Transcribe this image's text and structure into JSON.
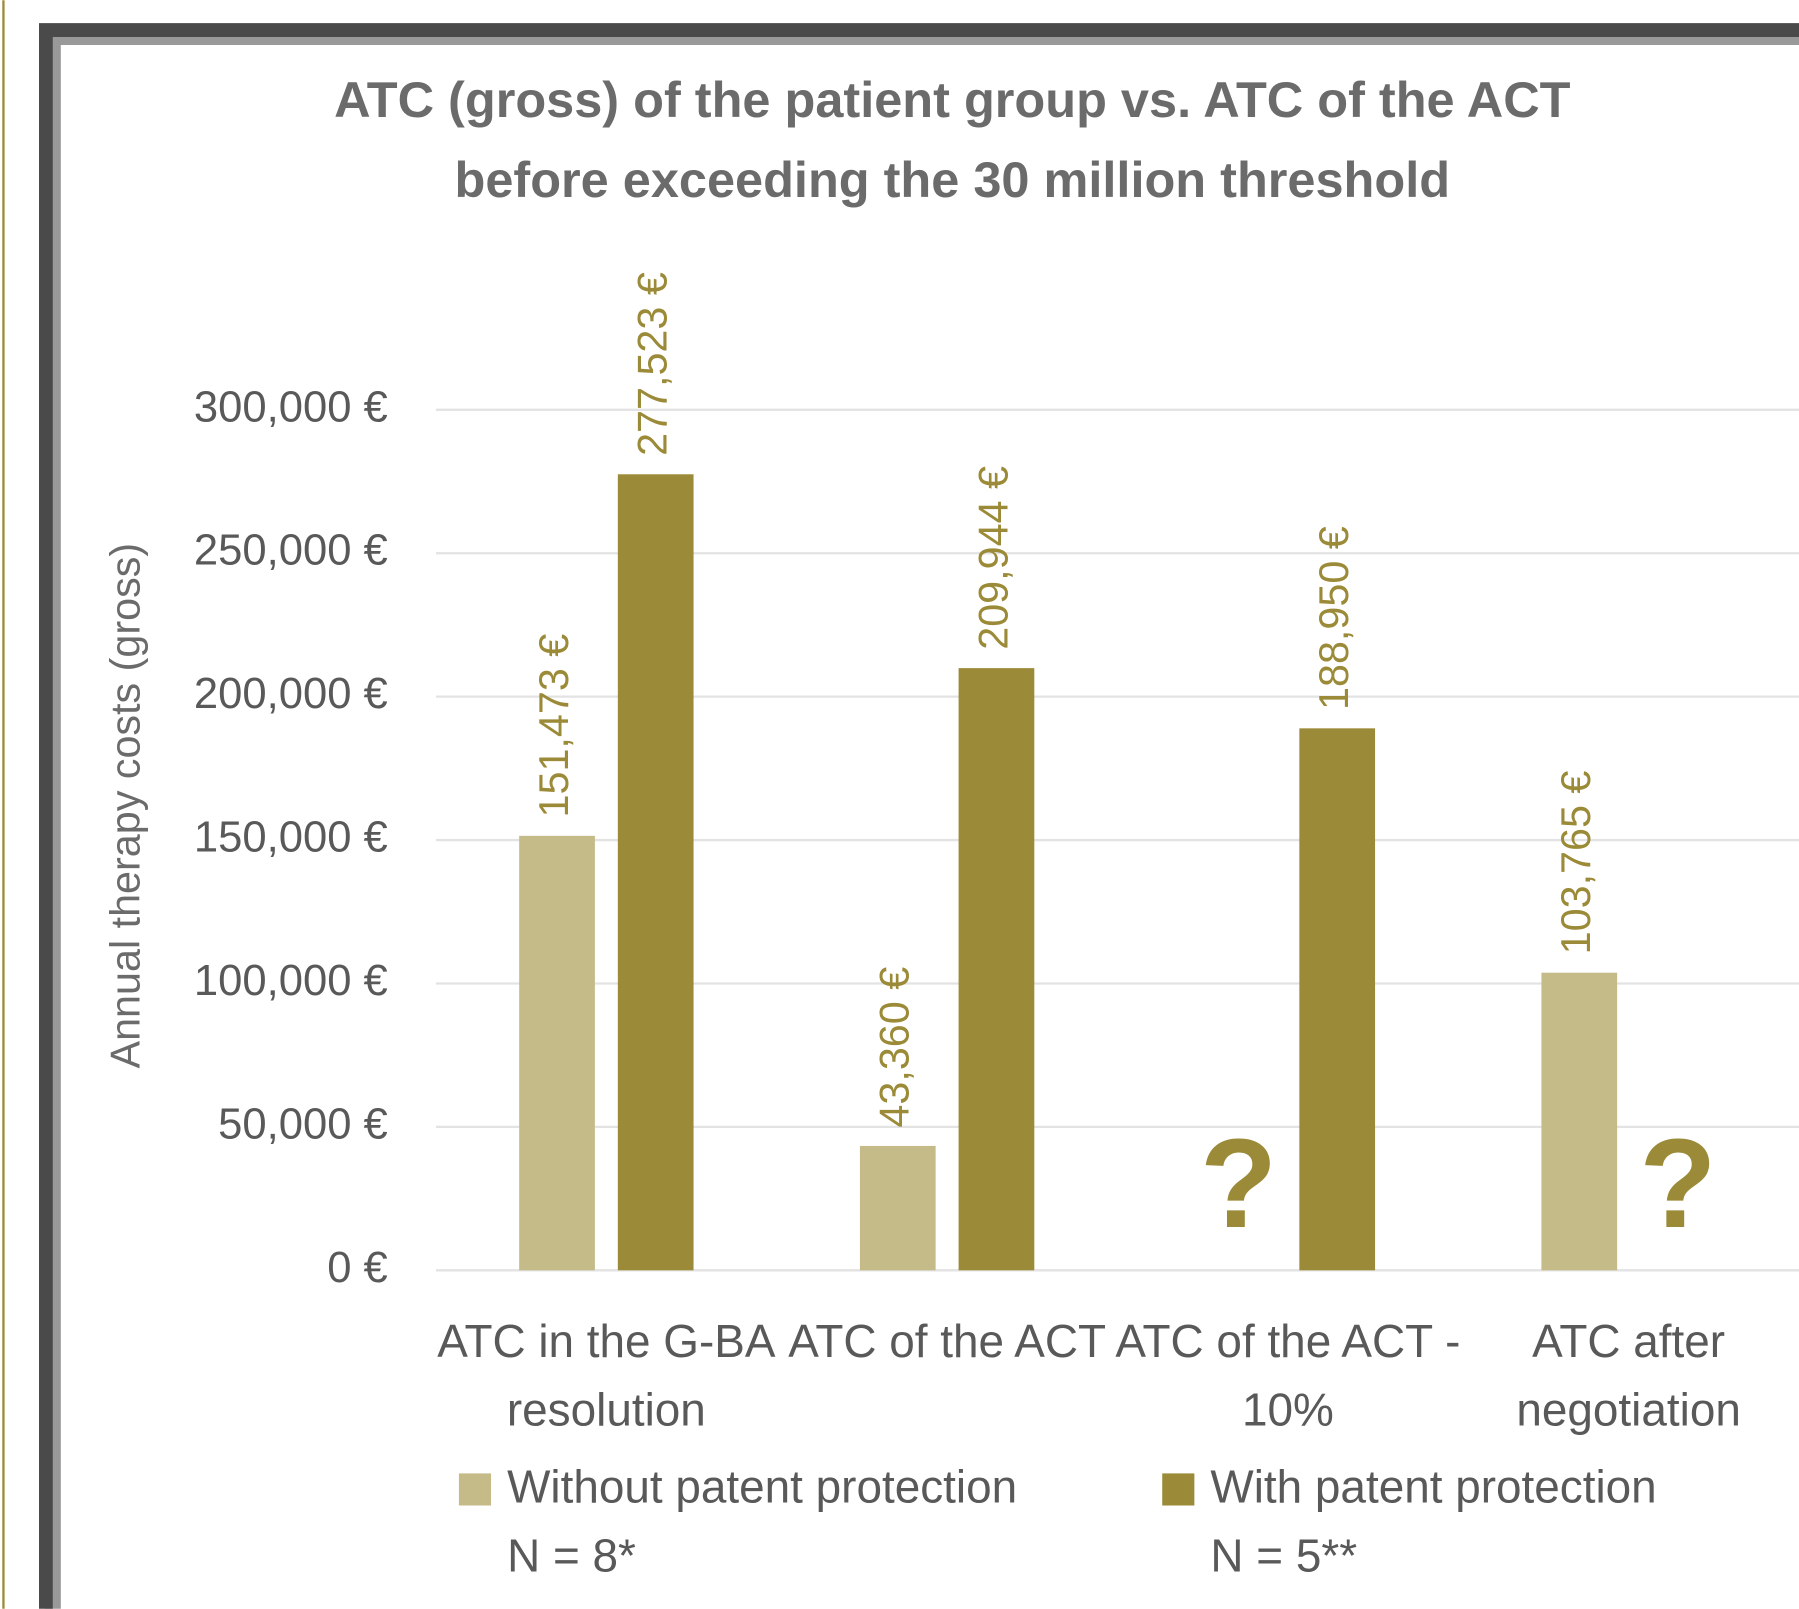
{
  "chart_data": {
    "type": "bar",
    "title": [
      "ATC (gross) of the patient group vs. ATC of the ACT",
      "before exceeding the 30 million threshold"
    ],
    "y_label": "Annual therapy costs (gross)",
    "categories": [
      "ATC in the G-BA\nresolution",
      "ATC of the ACT",
      "ATC of the ACT -\n10%",
      "ATC after\nnegotiation"
    ],
    "series": [
      {
        "name": "Without patent protection",
        "note": "N = 8*",
        "color": "#c4bb89",
        "values": [
          151473,
          43360,
          null,
          103765
        ],
        "value_labels": [
          "151,473 €",
          "43,360 €",
          "?",
          "103,765 €"
        ]
      },
      {
        "name": "With patent protection",
        "note": "N = 5**",
        "color": "#9b8a37",
        "values": [
          277523,
          209944,
          188950,
          null
        ],
        "value_labels": [
          "277,523 €",
          "209,944 €",
          "188,950 €",
          "?"
        ]
      }
    ],
    "ylim": [
      0,
      300000
    ],
    "yticks": [
      {
        "value": 0,
        "label": "0 €"
      },
      {
        "value": 50000,
        "label": "50,000 €"
      },
      {
        "value": 100000,
        "label": "100,000 €"
      },
      {
        "value": 150000,
        "label": "150,000 €"
      },
      {
        "value": 200000,
        "label": "200,000 €"
      },
      {
        "value": 250000,
        "label": "250,000 €"
      },
      {
        "value": 300000,
        "label": "300,000 €"
      }
    ],
    "grid": true,
    "legend": "bottom",
    "label_color": "#9b8a37"
  }
}
